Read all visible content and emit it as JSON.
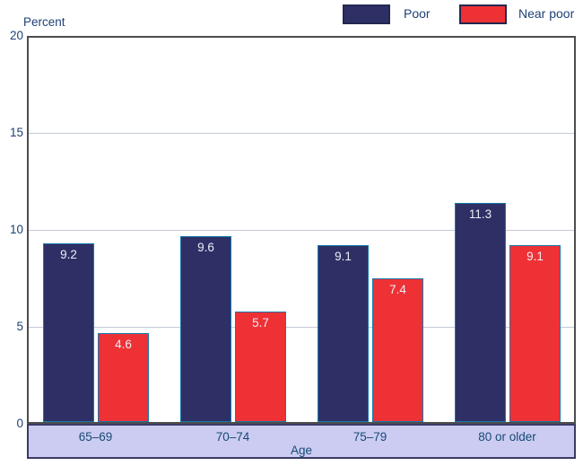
{
  "figure_type": "grouped-bar-chart",
  "y_axis": {
    "title": "Percent"
  },
  "x_axis": {
    "title": "Age"
  },
  "legend": {
    "position": "top-right",
    "items": [
      {
        "label": "Poor",
        "color": "#2e3065"
      },
      {
        "label": "Near poor",
        "color": "#ee3135"
      }
    ]
  },
  "colors": {
    "poor_fill": "#2e3065",
    "near_poor_fill": "#ee3135",
    "bar_outline": "#1878ad",
    "band_background": "#ccccf2",
    "band_border": "#3a3a66",
    "plot_frame": "#4d4d4d",
    "gridline": "#c3c9d8",
    "axis_text": "#1e4076",
    "bar_label_text": "#eceef7"
  },
  "chart_data": {
    "type": "bar",
    "title": "",
    "categories": [
      "65–69",
      "70–74",
      "75–79",
      "80 or older"
    ],
    "series": [
      {
        "name": "Poor",
        "color": "#2e3065",
        "values": [
          9.2,
          9.6,
          9.1,
          11.3
        ]
      },
      {
        "name": "Near poor",
        "color": "#ee3135",
        "values": [
          4.6,
          5.7,
          7.4,
          9.1
        ]
      }
    ],
    "xlabel": "Age",
    "ylabel": "Percent",
    "ylim": [
      0,
      20
    ],
    "yticks": [
      0,
      5,
      10,
      15,
      20
    ],
    "grid": "horizontal",
    "legend_position": "top-right",
    "data_labels": true
  }
}
